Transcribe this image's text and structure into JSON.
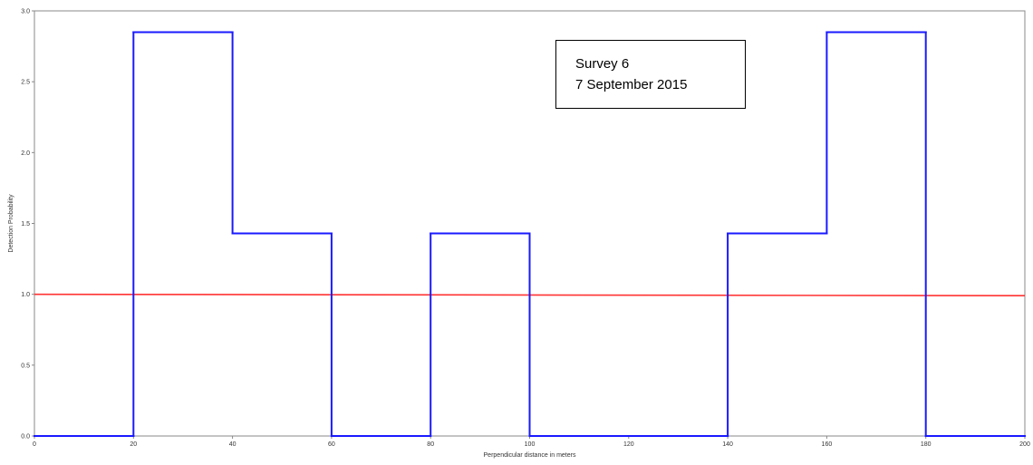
{
  "chart_data": {
    "type": "histogram-line",
    "xlabel": "Perpendicular distance in meters",
    "ylabel": "Detection Probability",
    "xlim": [
      0,
      200
    ],
    "ylim": [
      0,
      3.0
    ],
    "x_ticks": [
      0,
      20,
      40,
      60,
      80,
      100,
      120,
      140,
      160,
      180,
      200
    ],
    "y_ticks": [
      0.0,
      0.5,
      1.0,
      1.5,
      2.0,
      2.5,
      3.0
    ],
    "x_tick_labels": [
      "0",
      "20",
      "40",
      "60",
      "80",
      "100",
      "120",
      "140",
      "160",
      "180",
      "200"
    ],
    "y_tick_labels": [
      "0.0",
      "0.5",
      "1.0",
      "1.5",
      "2.0",
      "2.5",
      "3.0"
    ],
    "grid": false,
    "bins": [
      {
        "x0": 0,
        "x1": 20,
        "value": 0
      },
      {
        "x0": 20,
        "x1": 40,
        "value": 2.85
      },
      {
        "x0": 40,
        "x1": 60,
        "value": 1.43
      },
      {
        "x0": 60,
        "x1": 80,
        "value": 0
      },
      {
        "x0": 80,
        "x1": 100,
        "value": 1.43
      },
      {
        "x0": 100,
        "x1": 120,
        "value": 0
      },
      {
        "x0": 120,
        "x1": 140,
        "value": 0
      },
      {
        "x0": 140,
        "x1": 160,
        "value": 1.43
      },
      {
        "x0": 160,
        "x1": 180,
        "value": 2.85
      },
      {
        "x0": 180,
        "x1": 200,
        "value": 0
      }
    ],
    "fitted_line": {
      "x": [
        0,
        200
      ],
      "y": [
        1.0,
        0.99
      ]
    },
    "colors": {
      "bins": "#1a1aff",
      "fitted_line": "#ff3333",
      "axes": "#888888"
    },
    "annotation": {
      "lines": [
        "Survey 6",
        "7 September 2015"
      ]
    }
  }
}
